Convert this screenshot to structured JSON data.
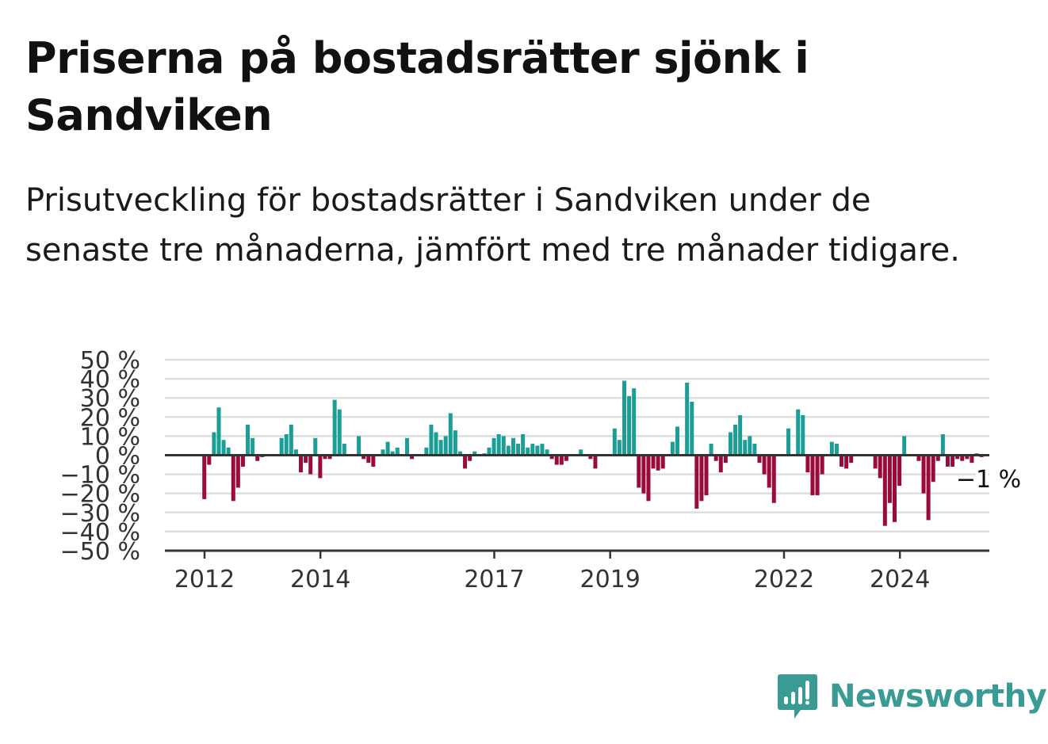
{
  "title": "Priserna på bostadsrätter sjönk i Sandviken",
  "subtitle": "Prisutveckling för bostadsrätter i Sandviken under de senaste tre månaderna, jämfört med tre månader tidigare.",
  "brand": {
    "name": "Newsworthy",
    "icon": "newsworthy-logo-icon",
    "color": "#3a9b94"
  },
  "colors": {
    "positive": "#1a9e96",
    "negative": "#9b0a3c",
    "grid": "#dedede",
    "axis": "#333333"
  },
  "chart_data": {
    "type": "bar",
    "ylim": [
      -50,
      50
    ],
    "y_ticks": [
      50,
      40,
      30,
      20,
      10,
      0,
      -10,
      -20,
      -30,
      -40,
      -50
    ],
    "y_tick_labels": [
      "50 %",
      "40 %",
      "30 %",
      "20 %",
      "10 %",
      "0 %",
      "−10 %",
      "−20 %",
      "−30 %",
      "−40 %",
      "−50 %"
    ],
    "x_ticks": [
      2012,
      2014,
      2017,
      2019,
      2022,
      2024
    ],
    "x_tick_labels": [
      "2012",
      "2014",
      "2017",
      "2019",
      "2022",
      "2024"
    ],
    "x_start": 2011.33,
    "x_step_years": 0.0833,
    "grid": true,
    "last_value_label": "−1 %",
    "values": [
      0,
      0,
      0,
      0,
      0,
      0,
      0,
      0,
      -23,
      -5,
      12,
      25,
      8,
      4,
      -24,
      -17,
      -6,
      16,
      9,
      -3,
      -1,
      0,
      0,
      0,
      9,
      11,
      16,
      3,
      -9,
      -4,
      -10,
      9,
      -12,
      -2,
      -2,
      29,
      24,
      6,
      0,
      0,
      10,
      -2,
      -4,
      -6,
      0,
      3,
      7,
      2,
      4,
      0,
      9,
      -2,
      0,
      0,
      4,
      16,
      12,
      8,
      10,
      22,
      13,
      2,
      -7,
      -3,
      2,
      0,
      1,
      4,
      9,
      11,
      10,
      5,
      9,
      6,
      11,
      4,
      6,
      5,
      6,
      3,
      -2,
      -5,
      -5,
      -3,
      0,
      0,
      3,
      0,
      -2,
      -7,
      0,
      0,
      0,
      14,
      8,
      39,
      31,
      35,
      -17,
      -20,
      -24,
      -7,
      -8,
      -7,
      0,
      7,
      15,
      0,
      38,
      28,
      -28,
      -24,
      -21,
      6,
      -3,
      -9,
      -4,
      12,
      16,
      21,
      8,
      10,
      6,
      -4,
      -10,
      -17,
      -25,
      0,
      0,
      14,
      0,
      24,
      21,
      -9,
      -21,
      -21,
      -10,
      0,
      7,
      6,
      -6,
      -7,
      -4,
      0,
      0,
      0,
      0,
      -7,
      -12,
      -37,
      -25,
      -35,
      -16,
      10,
      0,
      0,
      -3,
      -20,
      -34,
      -14,
      -3,
      11,
      -6,
      -6,
      -2,
      -3,
      -2,
      -4,
      1,
      -1
    ]
  }
}
